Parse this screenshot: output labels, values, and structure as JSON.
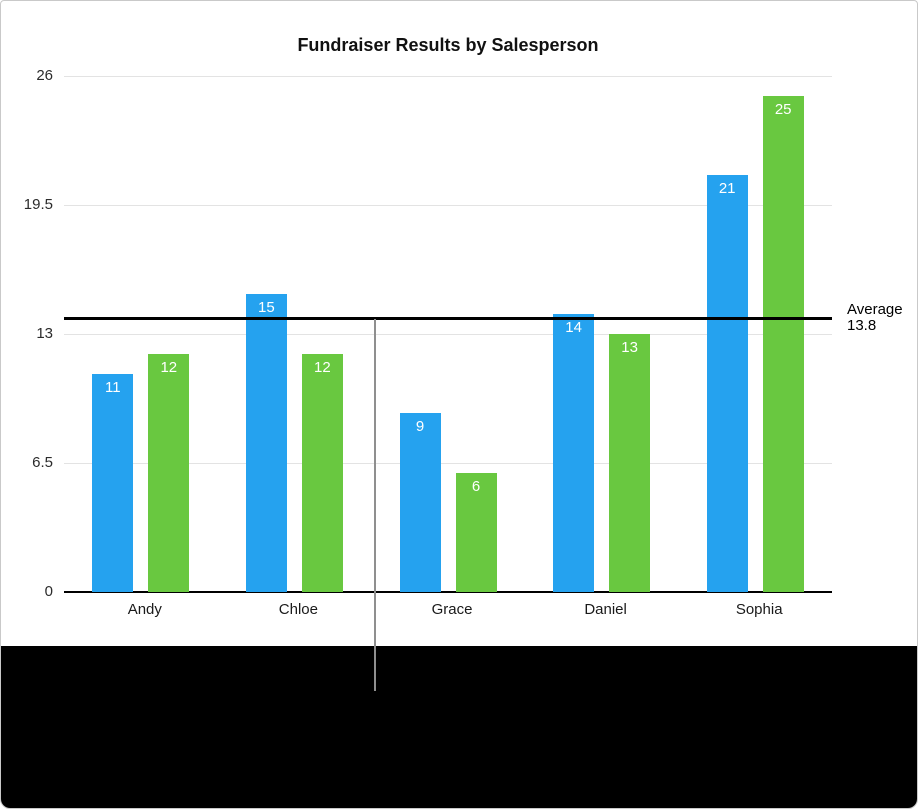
{
  "chart_data": {
    "type": "bar",
    "title": "Fundraiser Results by Salesperson",
    "categories": [
      "Andy",
      "Chloe",
      "Grace",
      "Daniel",
      "Sophia"
    ],
    "series": [
      {
        "name": "blue-series",
        "color": "#25a2ef",
        "values": [
          11,
          15,
          9,
          14,
          21
        ]
      },
      {
        "name": "green-series",
        "color": "#69c840",
        "values": [
          12,
          12,
          6,
          13,
          25
        ]
      }
    ],
    "y_ticks": [
      0,
      6.5,
      13,
      19.5,
      26
    ],
    "ylim": [
      0,
      26
    ],
    "grid": true,
    "legend_position": "none",
    "average_line": {
      "value": 13.8,
      "label_line1": "Average",
      "label_line2": "13.8",
      "color": "#000000"
    },
    "callout_line": {
      "target": "average-line",
      "color": "#8f8f8f"
    }
  }
}
